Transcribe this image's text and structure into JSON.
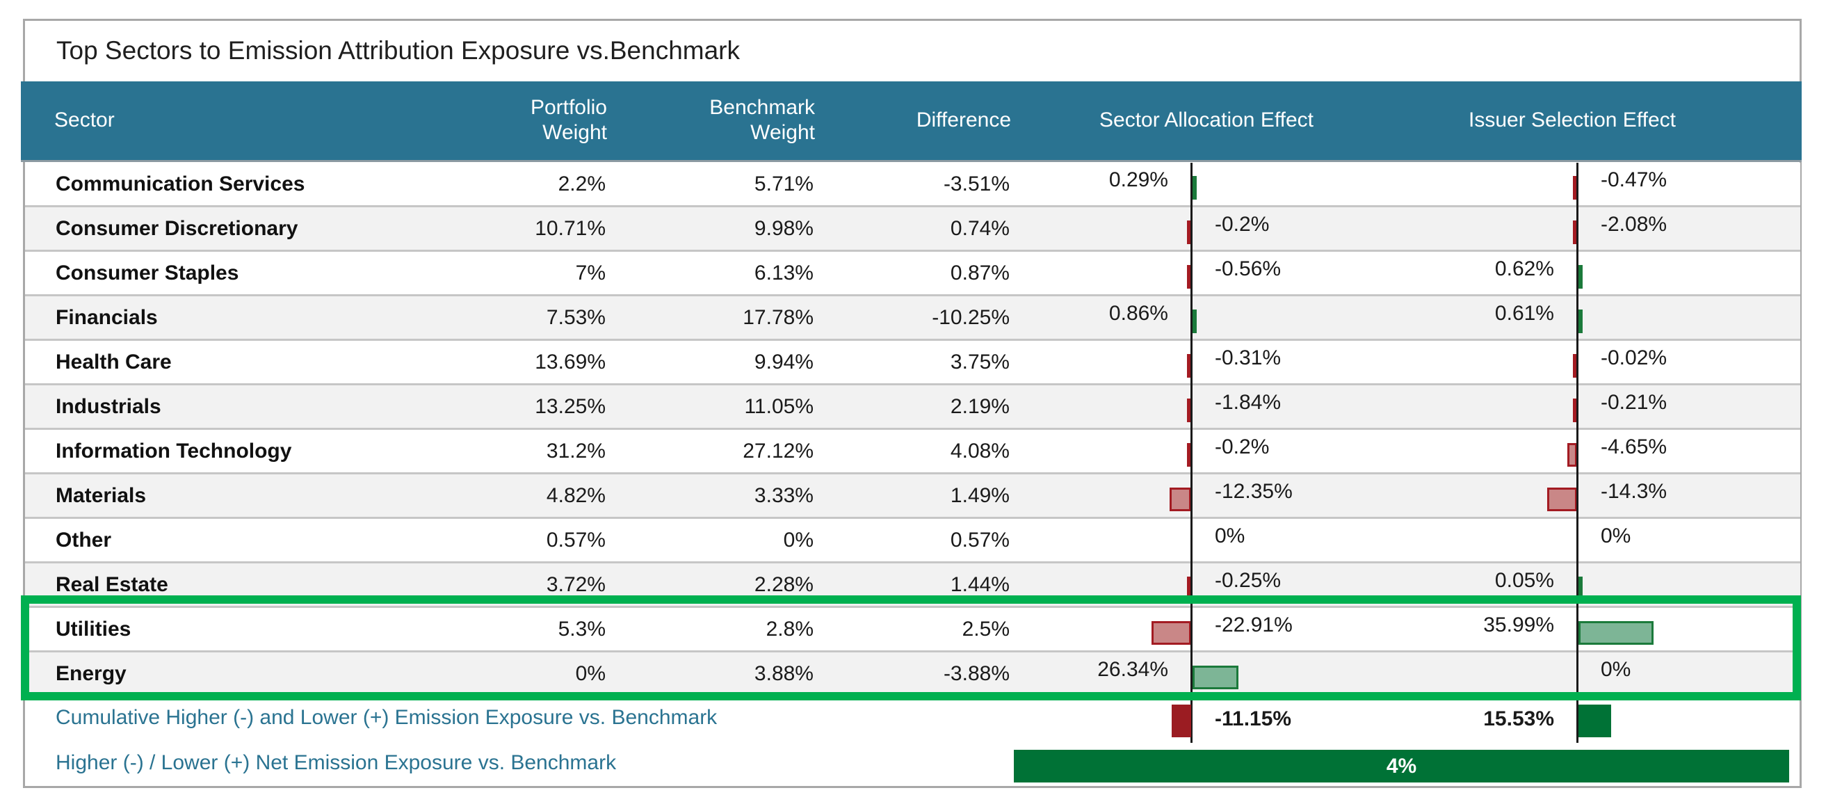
{
  "title": "Top Sectors to Emission Attribution Exposure vs.Benchmark",
  "colors": {
    "header_bg": "#2a7391",
    "negative_bar": "#c98787",
    "positive_bar": "#7db596",
    "cumulative_negative": "#9b1c22",
    "cumulative_positive": "#007236",
    "highlight": "#00b050",
    "footer_text": "#2a7391"
  },
  "columns": {
    "sector": "Sector",
    "portfolio_weight": [
      "Portfolio",
      "Weight"
    ],
    "benchmark_weight": [
      "Benchmark",
      "Weight"
    ],
    "difference": "Difference",
    "sector_allocation_effect": "Sector Allocation Effect",
    "issuer_selection_effect": "Issuer Selection Effect"
  },
  "rows": [
    {
      "sector": "Communication Services",
      "portfolio": "2.2%",
      "benchmark": "5.71%",
      "difference": "-3.51%",
      "allocation": 0.29,
      "allocation_label": "0.29%",
      "selection": -0.47,
      "selection_label": "-0.47%"
    },
    {
      "sector": "Consumer Discretionary",
      "portfolio": "10.71%",
      "benchmark": "9.98%",
      "difference": "0.74%",
      "allocation": -0.2,
      "allocation_label": "-0.2%",
      "selection": -2.08,
      "selection_label": "-2.08%"
    },
    {
      "sector": "Consumer Staples",
      "portfolio": "7%",
      "benchmark": "6.13%",
      "difference": "0.87%",
      "allocation": -0.56,
      "allocation_label": "-0.56%",
      "selection": 0.62,
      "selection_label": "0.62%"
    },
    {
      "sector": "Financials",
      "portfolio": "7.53%",
      "benchmark": "17.78%",
      "difference": "-10.25%",
      "allocation": 0.86,
      "allocation_label": "0.86%",
      "selection": 0.61,
      "selection_label": "0.61%"
    },
    {
      "sector": "Health Care",
      "portfolio": "13.69%",
      "benchmark": "9.94%",
      "difference": "3.75%",
      "allocation": -0.31,
      "allocation_label": "-0.31%",
      "selection": -0.02,
      "selection_label": "-0.02%"
    },
    {
      "sector": "Industrials",
      "portfolio": "13.25%",
      "benchmark": "11.05%",
      "difference": "2.19%",
      "allocation": -1.84,
      "allocation_label": "-1.84%",
      "selection": -0.21,
      "selection_label": "-0.21%"
    },
    {
      "sector": "Information Technology",
      "portfolio": "31.2%",
      "benchmark": "27.12%",
      "difference": "4.08%",
      "allocation": -0.2,
      "allocation_label": "-0.2%",
      "selection": -4.65,
      "selection_label": "-4.65%"
    },
    {
      "sector": "Materials",
      "portfolio": "4.82%",
      "benchmark": "3.33%",
      "difference": "1.49%",
      "allocation": -12.35,
      "allocation_label": "-12.35%",
      "selection": -14.3,
      "selection_label": "-14.3%"
    },
    {
      "sector": "Other",
      "portfolio": "0.57%",
      "benchmark": "0%",
      "difference": "0.57%",
      "allocation": 0,
      "allocation_label": "0%",
      "selection": 0,
      "selection_label": "0%"
    },
    {
      "sector": "Real Estate",
      "portfolio": "3.72%",
      "benchmark": "2.28%",
      "difference": "1.44%",
      "allocation": -0.25,
      "allocation_label": "-0.25%",
      "selection": 0.05,
      "selection_label": "0.05%"
    },
    {
      "sector": "Utilities",
      "portfolio": "5.3%",
      "benchmark": "2.8%",
      "difference": "2.5%",
      "allocation": -22.91,
      "allocation_label": "-22.91%",
      "selection": 35.99,
      "selection_label": "35.99%",
      "highlighted": true
    },
    {
      "sector": "Energy",
      "portfolio": "0%",
      "benchmark": "3.88%",
      "difference": "-3.88%",
      "allocation": 26.34,
      "allocation_label": "26.34%",
      "selection": 0,
      "selection_label": "0%",
      "highlighted": true
    }
  ],
  "cumulative": {
    "label": "Cumulative Higher (-) and Lower (+) Emission Exposure vs. Benchmark",
    "allocation": -11.15,
    "allocation_label": "-11.15%",
    "selection": 15.53,
    "selection_label": "15.53%"
  },
  "net": {
    "label": "Higher (-) / Lower (+) Net Emission Exposure vs. Benchmark",
    "value": 4,
    "value_label": "4%"
  }
}
